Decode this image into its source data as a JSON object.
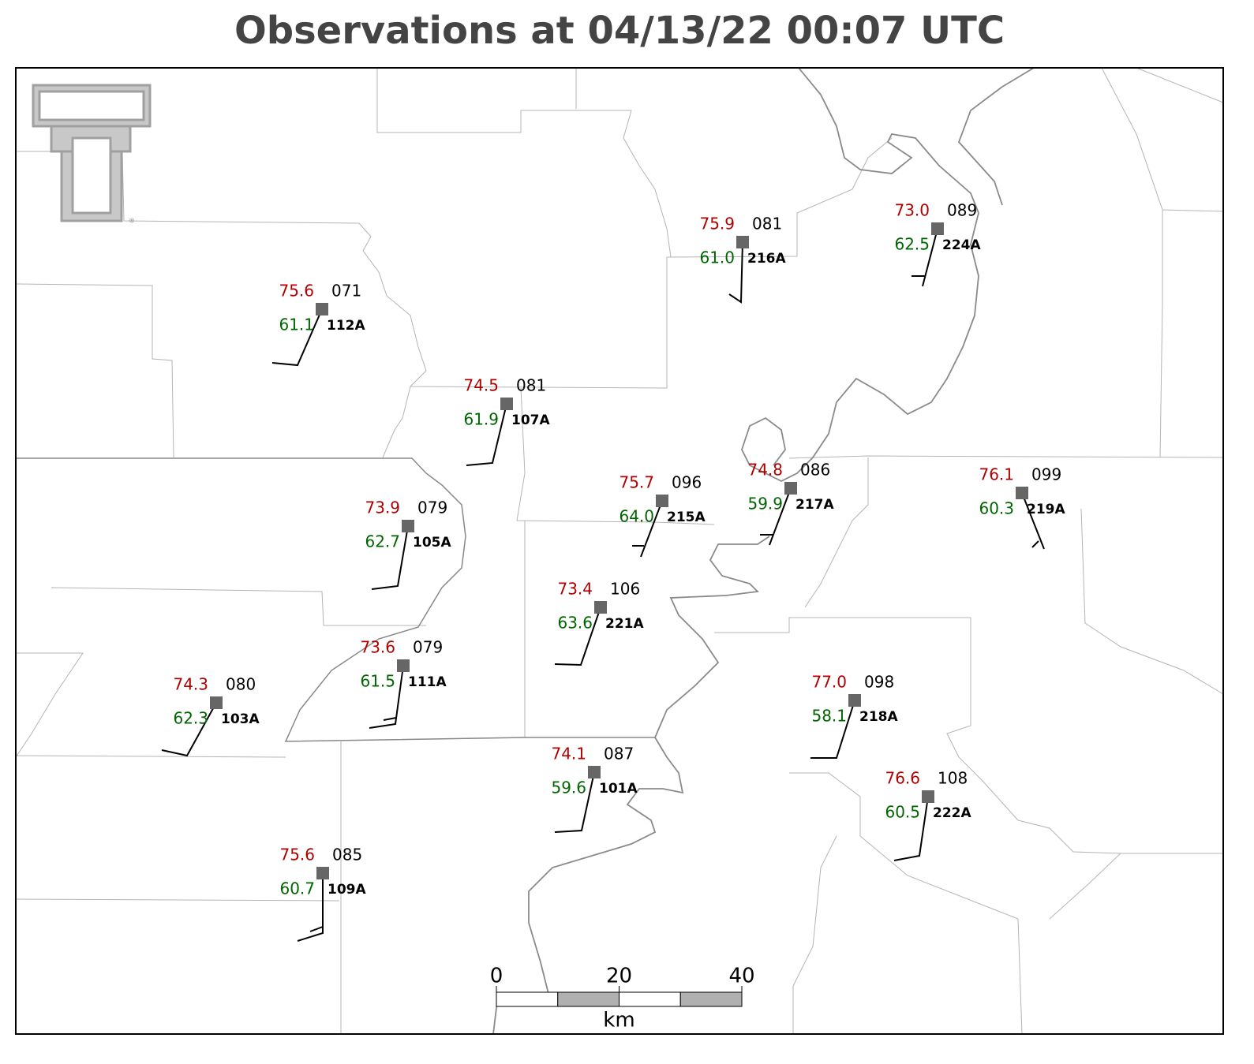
{
  "title": "Observations at 04/13/22 00:07 UTC",
  "stations": [
    {
      "id": "112A",
      "temperature": "75.6",
      "dewpoint": "61.1",
      "pressure": "071"
    },
    {
      "id": "107A",
      "temperature": "74.5",
      "dewpoint": "61.9",
      "pressure": "081"
    },
    {
      "id": "216A",
      "temperature": "75.9",
      "dewpoint": "61.0",
      "pressure": "081"
    },
    {
      "id": "224A",
      "temperature": "73.0",
      "dewpoint": "62.5",
      "pressure": "089"
    },
    {
      "id": "105A",
      "temperature": "73.9",
      "dewpoint": "62.7",
      "pressure": "079"
    },
    {
      "id": "215A",
      "temperature": "75.7",
      "dewpoint": "64.0",
      "pressure": "096"
    },
    {
      "id": "217A",
      "temperature": "74.8",
      "dewpoint": "59.9",
      "pressure": "086"
    },
    {
      "id": "219A",
      "temperature": "76.1",
      "dewpoint": "60.3",
      "pressure": "099"
    },
    {
      "id": "221A",
      "temperature": "73.4",
      "dewpoint": "63.6",
      "pressure": "106"
    },
    {
      "id": "111A",
      "temperature": "73.6",
      "dewpoint": "61.5",
      "pressure": "079"
    },
    {
      "id": "103A",
      "temperature": "74.3",
      "dewpoint": "62.3",
      "pressure": "080"
    },
    {
      "id": "218A",
      "temperature": "77.0",
      "dewpoint": "58.1",
      "pressure": "098"
    },
    {
      "id": "101A",
      "temperature": "74.1",
      "dewpoint": "59.6",
      "pressure": "087"
    },
    {
      "id": "222A",
      "temperature": "76.6",
      "dewpoint": "60.5",
      "pressure": "108"
    },
    {
      "id": "109A",
      "temperature": "75.6",
      "dewpoint": "60.7",
      "pressure": "085"
    }
  ],
  "scale_bar": {
    "ticks": [
      0,
      20,
      40
    ],
    "unit": "km"
  }
}
